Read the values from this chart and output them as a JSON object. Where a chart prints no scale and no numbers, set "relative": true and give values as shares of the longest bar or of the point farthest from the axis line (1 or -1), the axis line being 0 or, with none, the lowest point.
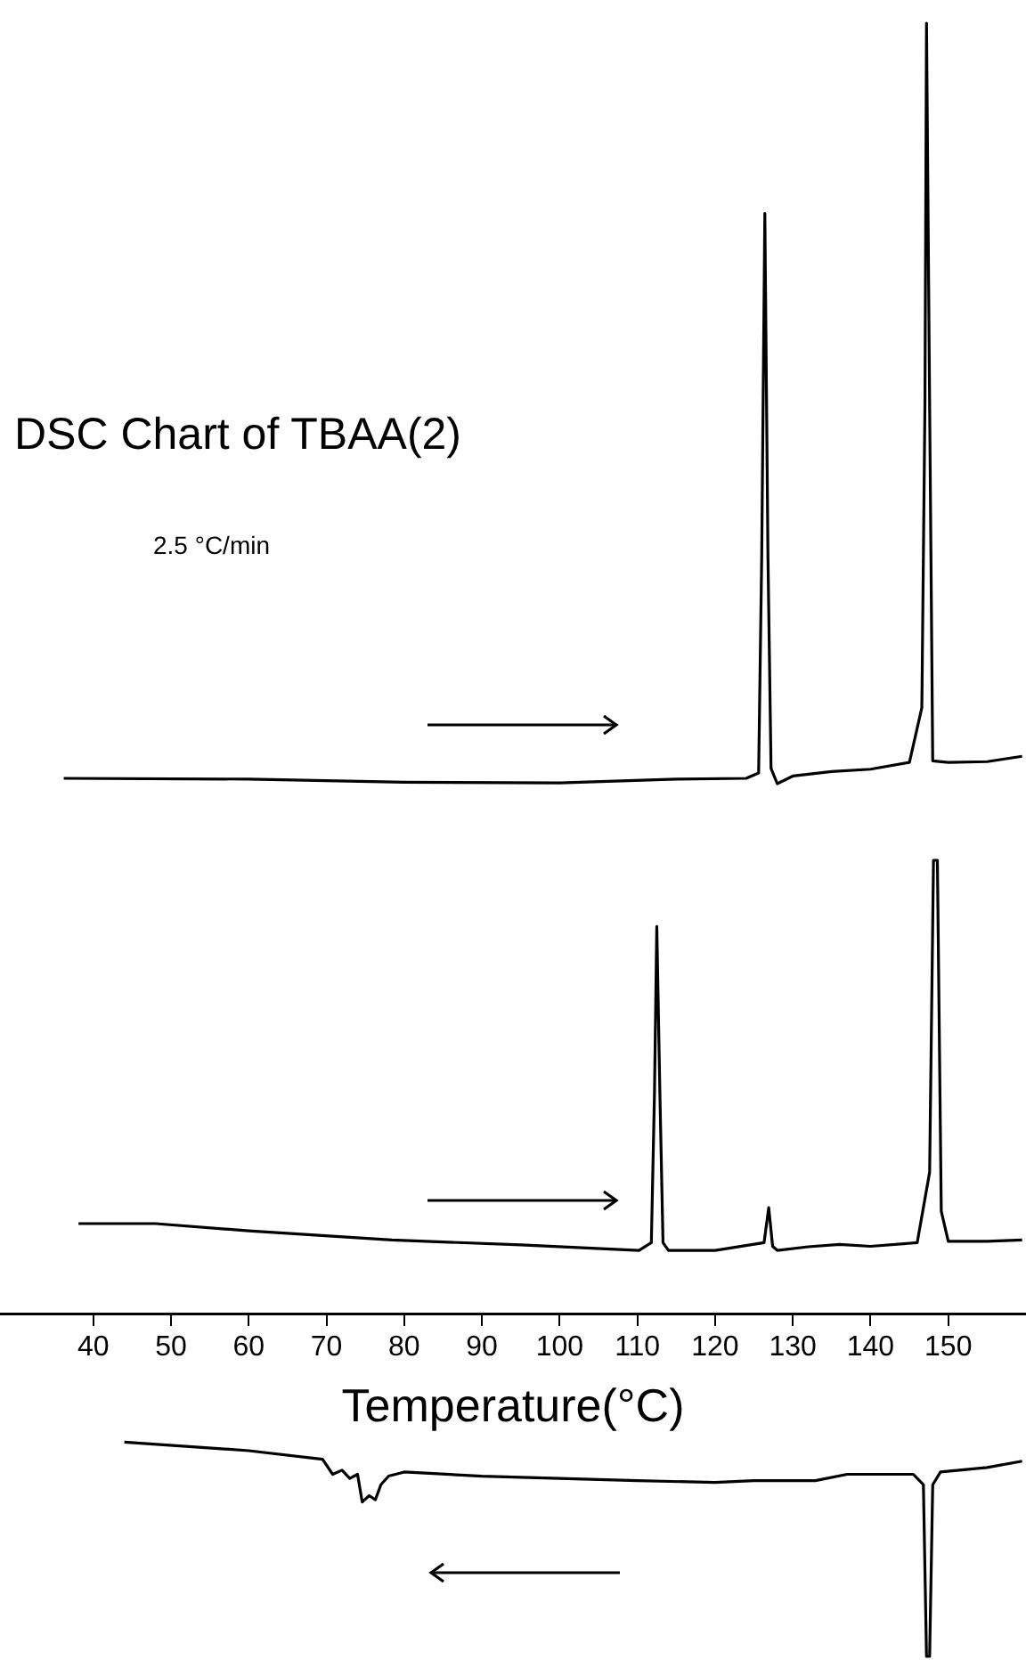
{
  "chart_data": [
    {
      "type": "line",
      "title": "DSC Chart of TBAA(2)",
      "subtitle": "2.5 °C/min",
      "relative": true,
      "tick_labels": false,
      "xlim": [
        28,
        160
      ],
      "series": [
        {
          "color": "#000000",
          "x": [
            36.2,
            60,
            80,
            100,
            115,
            124,
            125.6,
            126.0,
            126.4,
            126.8,
            127.2,
            128,
            130,
            135,
            140,
            145,
            146.6,
            147.0,
            147.2,
            147.6,
            148.0,
            150,
            155,
            159.5
          ],
          "values": [
            0.007,
            0.006,
            0.002,
            0.001,
            0.006,
            0.007,
            0.014,
            0.3,
            0.75,
            0.3,
            0.02,
            0,
            0.01,
            0.016,
            0.019,
            0.028,
            0.1,
            0.5,
            1,
            0.5,
            0.03,
            0.028,
            0.029,
            0.036
          ]
        }
      ]
    },
    {
      "type": "line",
      "xlabel": "Temperature(°C)",
      "relative": true,
      "tick_labels": "x",
      "xlim": [
        28,
        160
      ],
      "xticks": [
        40,
        50,
        60,
        70,
        80,
        90,
        100,
        110,
        120,
        130,
        140,
        150
      ],
      "series": [
        {
          "color": "#000000",
          "x": [
            38.1,
            48,
            60,
            78.4,
            95,
            110.2,
            111.8,
            112.2,
            112.5,
            112.9,
            113.3,
            114,
            120,
            126.3,
            126.9,
            127.4,
            128,
            132,
            136,
            140,
            146,
            147.6,
            148.1,
            148.6,
            149.1,
            150,
            155,
            159.5
          ],
          "values": [
            0.2,
            0.2,
            0.184,
            0.164,
            0.153,
            0.141,
            0.158,
            0.485,
            0.854,
            0.485,
            0.158,
            0.141,
            0.141,
            0.158,
            0.235,
            0.15,
            0.141,
            0.149,
            0.154,
            0.15,
            0.158,
            0.313,
            1,
            1,
            0.227,
            0.161,
            0.161,
            0.164
          ]
        },
        {
          "color": "#000000",
          "x": [
            44,
            60,
            69.5,
            70.8,
            72,
            73,
            74,
            74.6,
            75.5,
            76.3,
            77,
            78,
            80,
            90,
            100,
            110,
            120,
            125,
            132.9,
            137,
            145.5,
            146.8,
            147.2,
            147.6,
            148.0,
            149,
            155,
            159.5
          ],
          "values": [
            -0.281,
            -0.3,
            -0.319,
            -0.352,
            -0.343,
            -0.361,
            -0.352,
            -0.413,
            -0.399,
            -0.408,
            -0.375,
            -0.356,
            -0.347,
            -0.356,
            -0.361,
            -0.366,
            -0.37,
            -0.366,
            -0.366,
            -0.352,
            -0.352,
            -0.375,
            -0.753,
            -0.753,
            -0.375,
            -0.347,
            -0.337,
            -0.323
          ]
        }
      ]
    }
  ]
}
